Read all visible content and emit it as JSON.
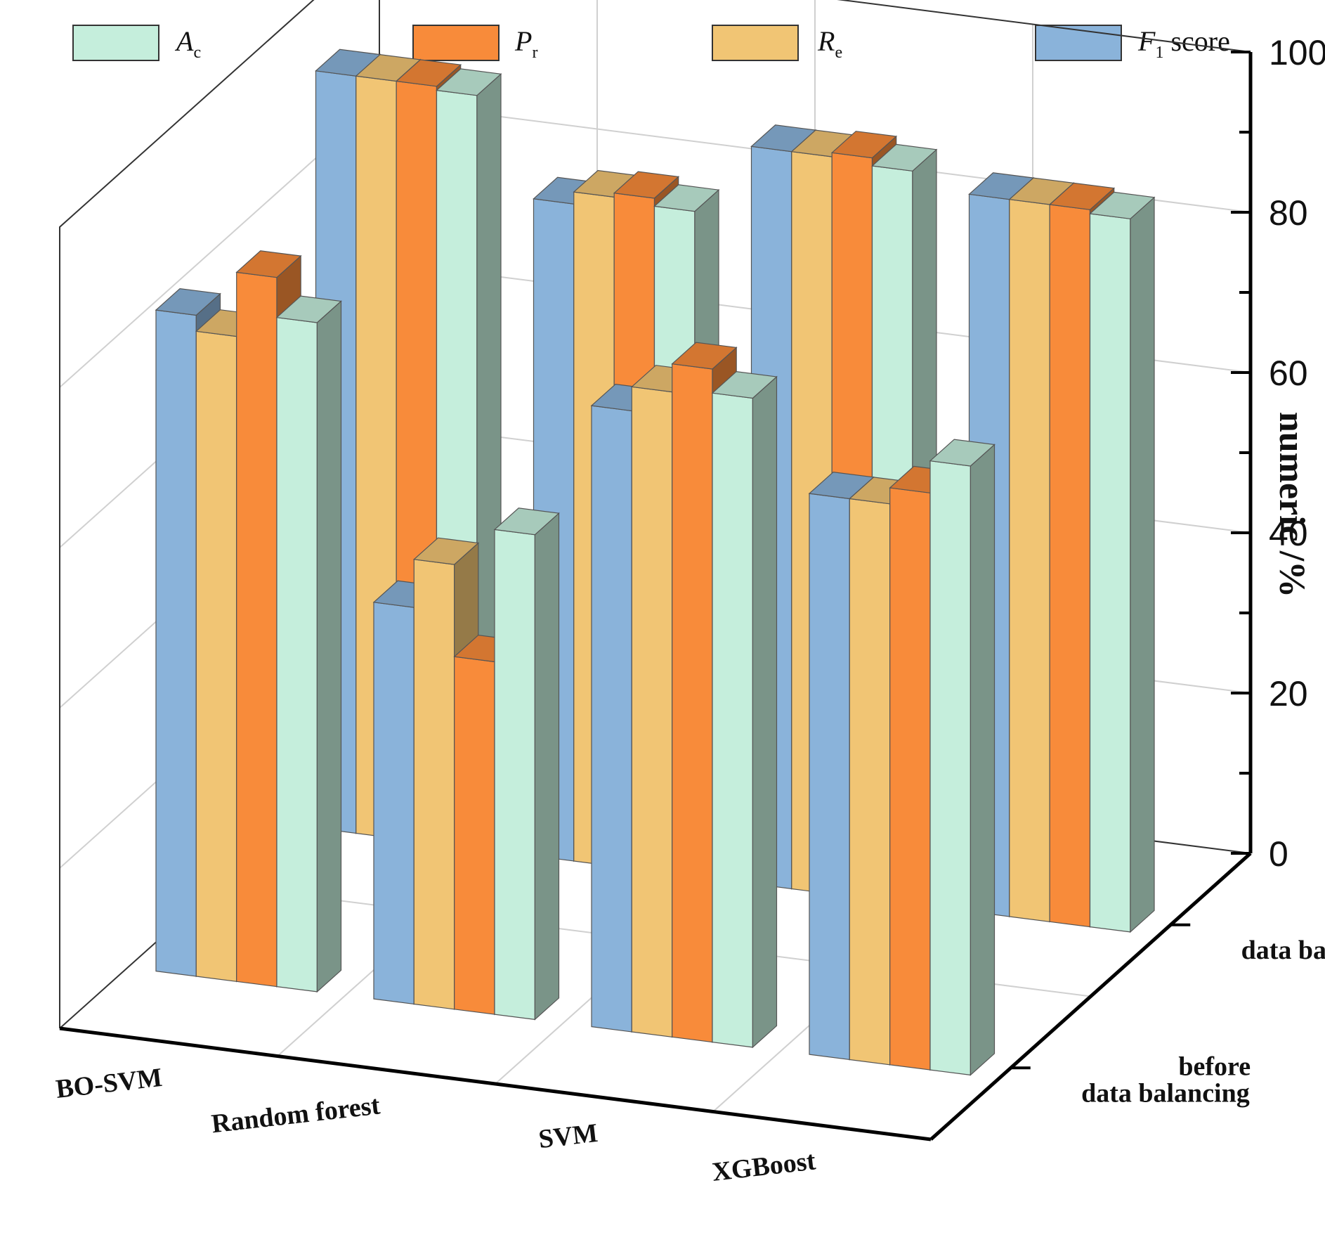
{
  "chart_data": {
    "type": "bar",
    "subtype": "3d-grouped-bar",
    "title": "",
    "ylabel": "numeric /%",
    "ylim": [
      0,
      100
    ],
    "yticks": [
      0,
      20,
      40,
      60,
      80,
      100
    ],
    "categories": [
      "BO-SVM",
      "Random forest",
      "SVM",
      "XGBoost"
    ],
    "depth_categories": [
      "before\ndata balancing",
      "after\ndata balancing"
    ],
    "legend": [
      {
        "key": "Ac",
        "base": "A",
        "sub": "c",
        "suffix": "",
        "color": "#c5eedc"
      },
      {
        "key": "Pr",
        "base": "P",
        "sub": "r",
        "suffix": "",
        "color": "#f88b3a"
      },
      {
        "key": "Re",
        "base": "R",
        "sub": "e",
        "suffix": "",
        "color": "#f1c574"
      },
      {
        "key": "F1",
        "base": "F",
        "sub": "1",
        "suffix": " score",
        "color": "#8ab3da"
      }
    ],
    "series_order_in_group": [
      "F1",
      "Re",
      "Pr",
      "Ac"
    ],
    "series": [
      {
        "name": "F1 score",
        "key": "F1",
        "before": [
          82.5,
          49.5,
          77.5,
          70.0
        ],
        "after": [
          94.5,
          82.0,
          92.0,
          89.5
        ]
      },
      {
        "name": "Re",
        "key": "Re",
        "before": [
          80.5,
          55.5,
          80.5,
          70.0
        ],
        "after": [
          94.5,
          83.5,
          92.0,
          89.5
        ]
      },
      {
        "name": "Pr",
        "key": "Pr",
        "before": [
          88.5,
          44.0,
          84.0,
          72.0
        ],
        "after": [
          94.5,
          84.0,
          92.5,
          89.5
        ]
      },
      {
        "name": "Ac",
        "key": "Ac",
        "before": [
          83.5,
          60.5,
          81.0,
          76.0
        ],
        "after": [
          94.0,
          83.0,
          91.5,
          89.0
        ]
      }
    ]
  }
}
